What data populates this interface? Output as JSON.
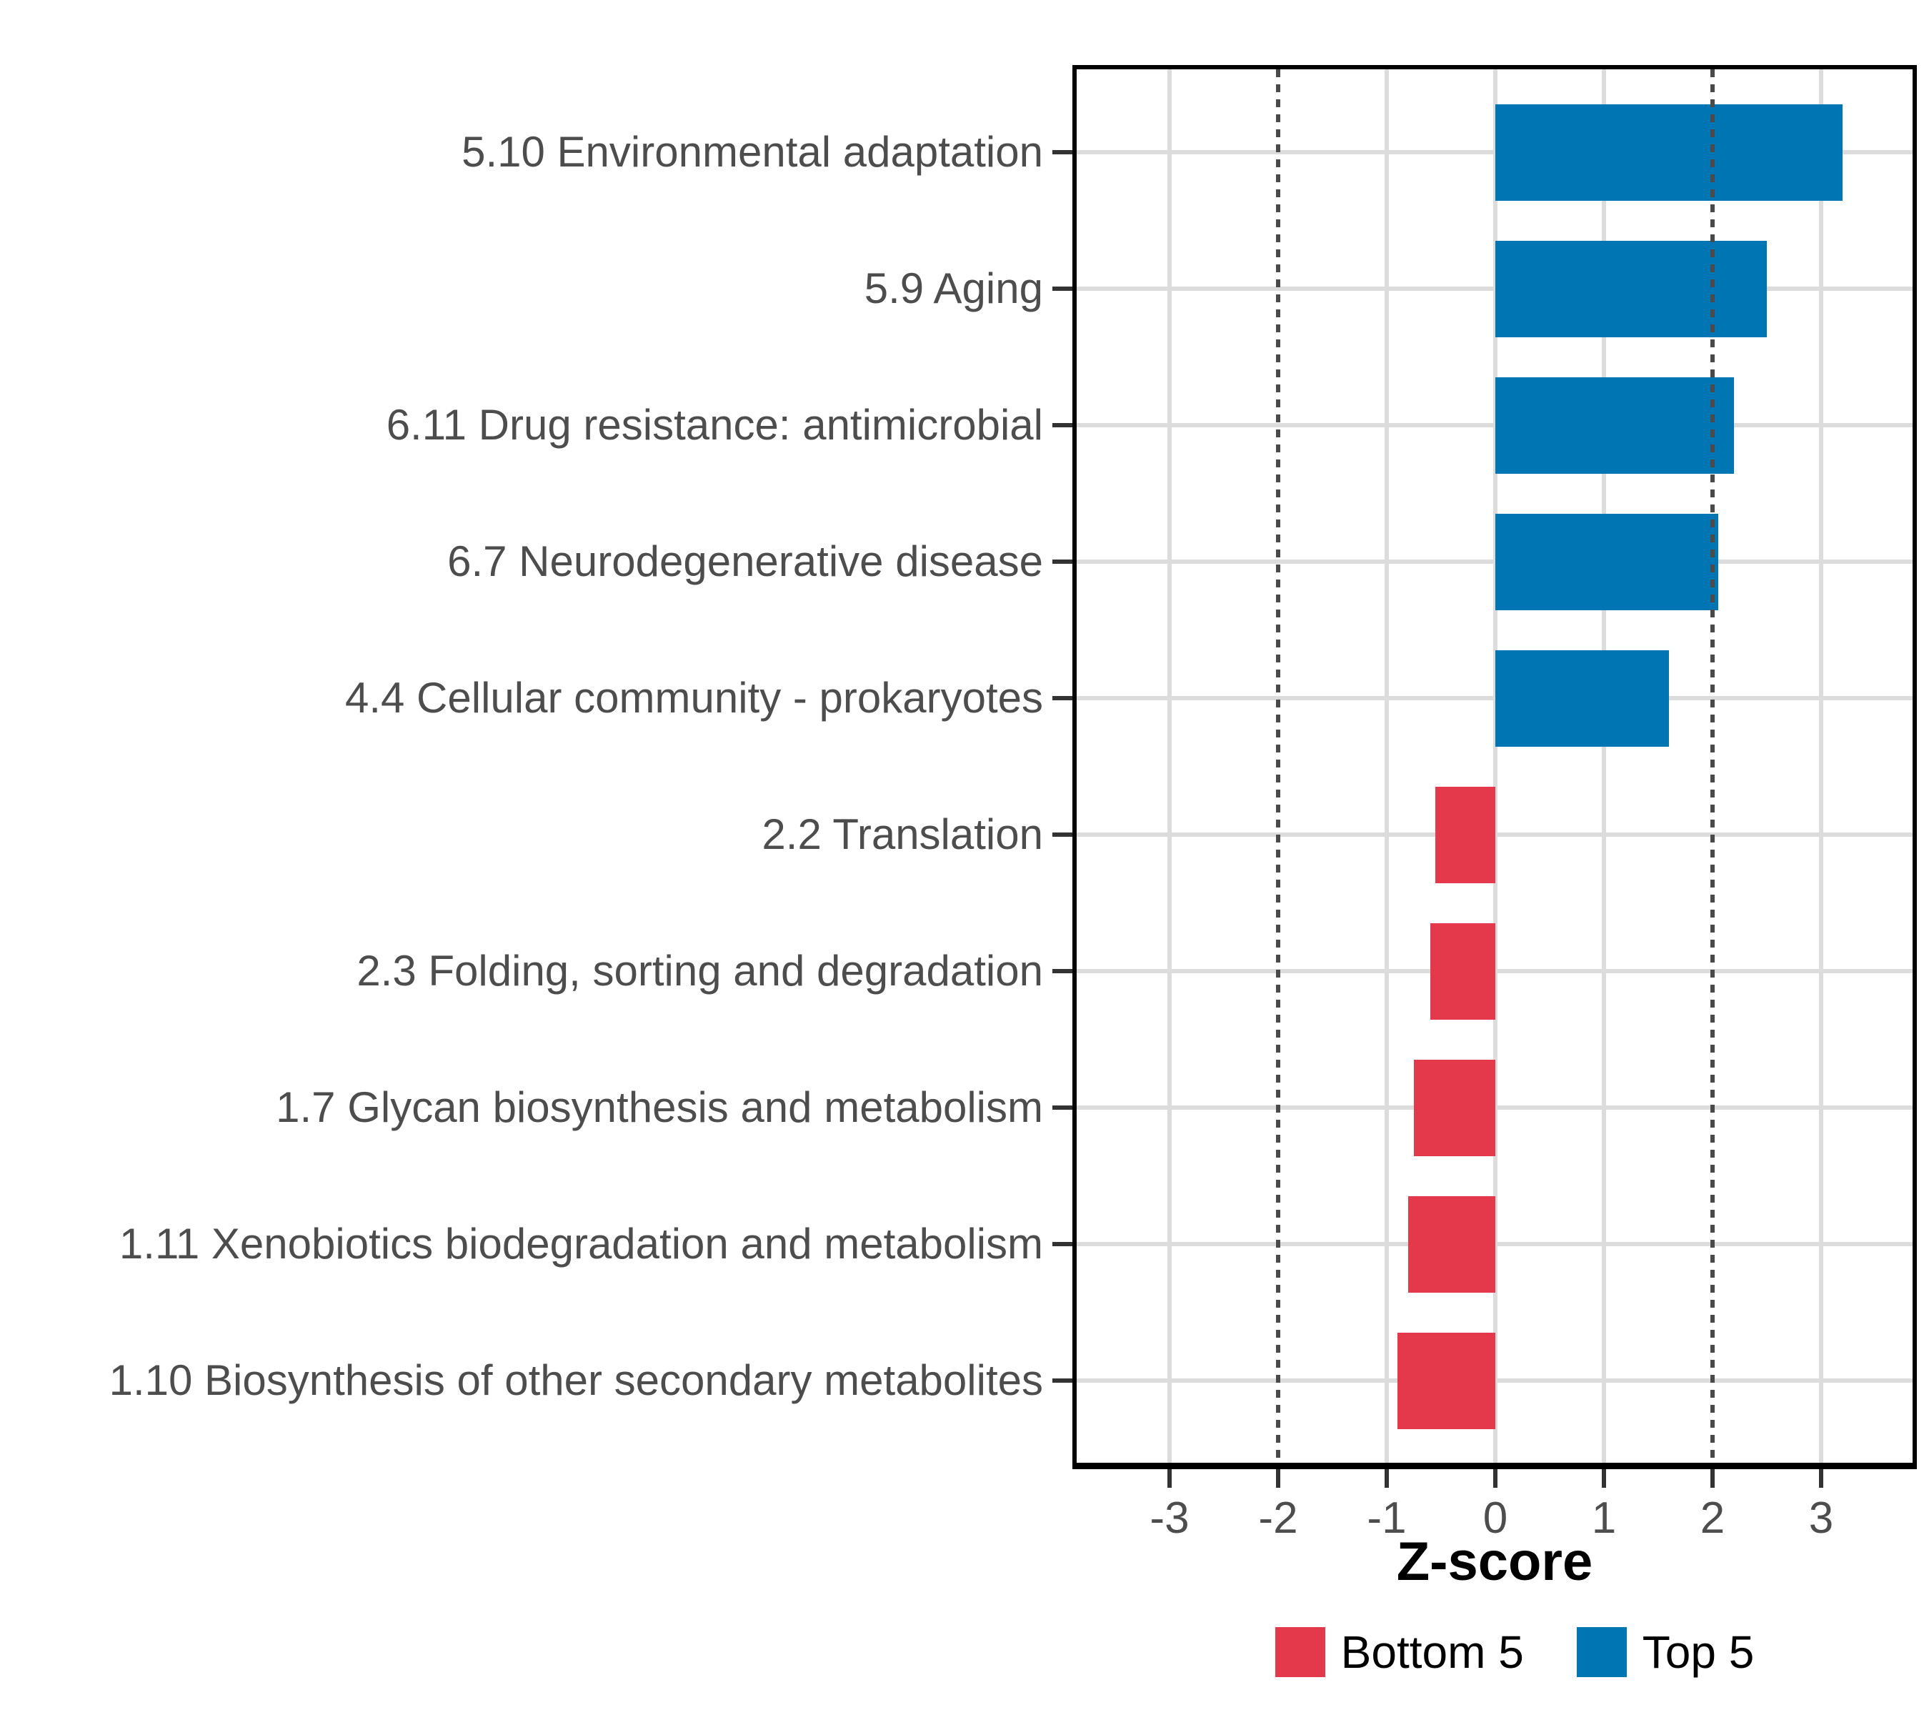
{
  "chart_data": {
    "type": "bar",
    "orientation": "horizontal",
    "title": "",
    "xlabel": "Z-score",
    "ylabel": "",
    "categories": [
      "5.10 Environmental adaptation",
      "5.9 Aging",
      "6.11 Drug resistance: antimicrobial",
      "6.7 Neurodegenerative disease",
      "4.4 Cellular community - prokaryotes",
      "2.2 Translation",
      "2.3 Folding, sorting and degradation",
      "1.7 Glycan biosynthesis and metabolism",
      "1.11 Xenobiotics biodegradation and metabolism",
      "1.10 Biosynthesis of other secondary metabolites"
    ],
    "values": [
      3.2,
      2.5,
      2.2,
      2.05,
      1.6,
      -0.55,
      -0.6,
      -0.75,
      -0.8,
      -0.9
    ],
    "groups": [
      "Top 5",
      "Top 5",
      "Top 5",
      "Top 5",
      "Top 5",
      "Bottom 5",
      "Bottom 5",
      "Bottom 5",
      "Bottom 5",
      "Bottom 5"
    ],
    "group_colors": {
      "Top 5": "#0075B4",
      "Bottom 5": "#E3394A"
    },
    "xticks": [
      -3,
      -2,
      -1,
      0,
      1,
      2,
      3
    ],
    "xlim": [
      -3.85,
      3.85
    ],
    "grid": "major gridlines on, light gray; no minor gridlines",
    "reference_lines": {
      "values": [
        -2,
        2
      ],
      "style": "dotted",
      "color": "#4a4a4a"
    },
    "legend": {
      "position": "bottom",
      "entries": [
        {
          "label": "Bottom 5",
          "color": "#E3394A"
        },
        {
          "label": "Top 5",
          "color": "#0075B4"
        }
      ]
    }
  },
  "axis": {
    "x_title": "Z-score"
  },
  "legend_labels": {
    "bottom": "Bottom 5",
    "top": "Top 5"
  }
}
